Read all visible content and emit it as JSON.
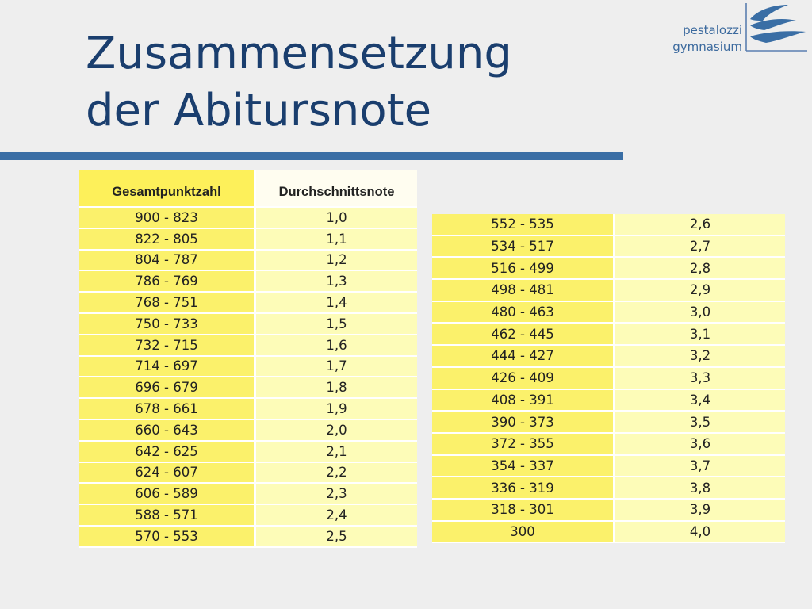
{
  "slide": {
    "title_line1": "Zusammensetzung",
    "title_line2": "der Abitursnote",
    "accent_color": "#3a6ea5",
    "title_color": "#1a3e6e"
  },
  "logo": {
    "line1": "pestalozzi",
    "line2": "gymnasium",
    "icon": "wave-logo-icon"
  },
  "table_left": {
    "headers": [
      "Gesamtpunktzahl",
      "Durchschnittsnote"
    ],
    "rows": [
      [
        "900 - 823",
        "1,0"
      ],
      [
        "822 - 805",
        "1,1"
      ],
      [
        "804 - 787",
        "1,2"
      ],
      [
        "786 - 769",
        "1,3"
      ],
      [
        "768 - 751",
        "1,4"
      ],
      [
        "750 - 733",
        "1,5"
      ],
      [
        "732 - 715",
        "1,6"
      ],
      [
        "714 - 697",
        "1,7"
      ],
      [
        "696 - 679",
        "1,8"
      ],
      [
        "678 - 661",
        "1,9"
      ],
      [
        "660 - 643",
        "2,0"
      ],
      [
        "642 - 625",
        "2,1"
      ],
      [
        "624 - 607",
        "2,2"
      ],
      [
        "606 - 589",
        "2,3"
      ],
      [
        "588 - 571",
        "2,4"
      ],
      [
        "570 - 553",
        "2,5"
      ]
    ]
  },
  "table_right": {
    "rows": [
      [
        "552 - 535",
        "2,6"
      ],
      [
        "534 - 517",
        "2,7"
      ],
      [
        "516 - 499",
        "2,8"
      ],
      [
        "498 - 481",
        "2,9"
      ],
      [
        "480 - 463",
        "3,0"
      ],
      [
        "462 - 445",
        "3,1"
      ],
      [
        "444 - 427",
        "3,2"
      ],
      [
        "426 - 409",
        "3,3"
      ],
      [
        "408 - 391",
        "3,4"
      ],
      [
        "390 - 373",
        "3,5"
      ],
      [
        "372 - 355",
        "3,6"
      ],
      [
        "354 - 337",
        "3,7"
      ],
      [
        "336 - 319",
        "3,8"
      ],
      [
        "318 - 301",
        "3,9"
      ],
      [
        "300",
        "4,0"
      ]
    ]
  }
}
